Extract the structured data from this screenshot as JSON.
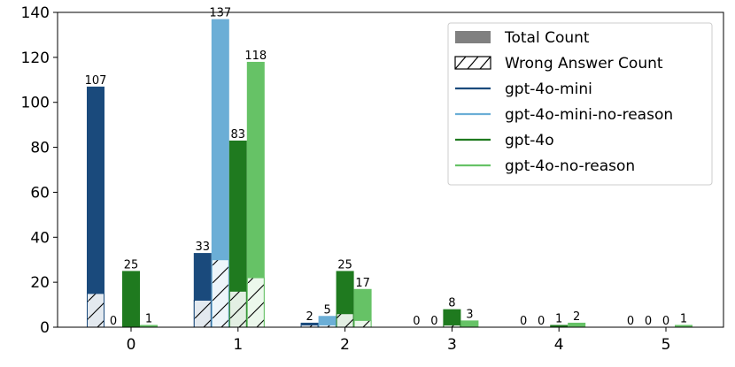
{
  "chart_data": {
    "type": "bar",
    "categories": [
      "0",
      "1",
      "2",
      "3",
      "4",
      "5"
    ],
    "ylim": [
      0,
      140
    ],
    "yticks": [
      0,
      20,
      40,
      60,
      80,
      100,
      120,
      140
    ],
    "grid": false,
    "legend_placement": "top-right",
    "legend": {
      "total_label": "Total Count",
      "wrong_label": "Wrong Answer Count"
    },
    "series": [
      {
        "name": "gpt-4o-mini",
        "color": "#1a4a7c",
        "values": [
          107,
          33,
          2,
          0,
          0,
          0
        ],
        "wrong_values": [
          15,
          12,
          1,
          0,
          0,
          0
        ]
      },
      {
        "name": "gpt-4o-mini-no-reason",
        "color": "#6baed6",
        "values": [
          0,
          137,
          5,
          0,
          0,
          0
        ],
        "wrong_values": [
          0,
          30,
          1,
          0,
          0,
          0
        ]
      },
      {
        "name": "gpt-4o",
        "color": "#1f7a1f",
        "values": [
          25,
          83,
          25,
          8,
          1,
          0
        ],
        "wrong_values": [
          0,
          16,
          6,
          1,
          0,
          0
        ]
      },
      {
        "name": "gpt-4o-no-reason",
        "color": "#66c266",
        "values": [
          1,
          118,
          17,
          3,
          2,
          1
        ],
        "wrong_values": [
          0,
          22,
          3,
          0,
          0,
          0
        ]
      }
    ]
  }
}
